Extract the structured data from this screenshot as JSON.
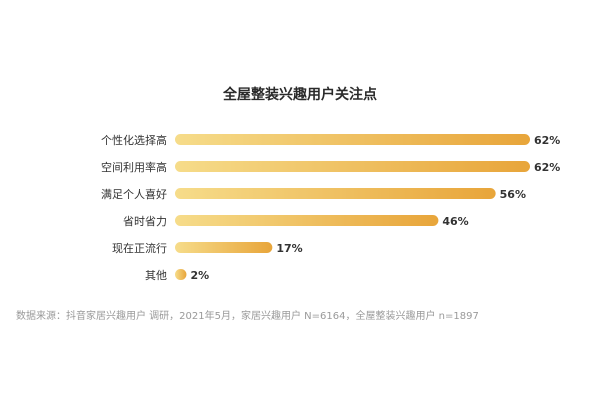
{
  "chart_data": {
    "type": "bar",
    "orientation": "horizontal",
    "title": "全屋整装兴趣用户关注点",
    "categories": [
      "个性化选择高",
      "空间利用率高",
      "满足个人喜好",
      "省时省力",
      "现在正流行",
      "其他"
    ],
    "values": [
      62,
      62,
      56,
      46,
      17,
      2
    ],
    "value_labels": [
      "62%",
      "62%",
      "56%",
      "46%",
      "17%",
      "2%"
    ],
    "xlim": [
      0,
      62
    ],
    "grid": false,
    "legend": "none",
    "colors": {
      "bar_start": "#f6dc8a",
      "bar_end": "#e8a53a"
    }
  },
  "source": "数据来源：抖音家居兴趣用户 调研，2021年5月，家居兴趣用户 N=6164，全屋整装兴趣用户 n=1897"
}
